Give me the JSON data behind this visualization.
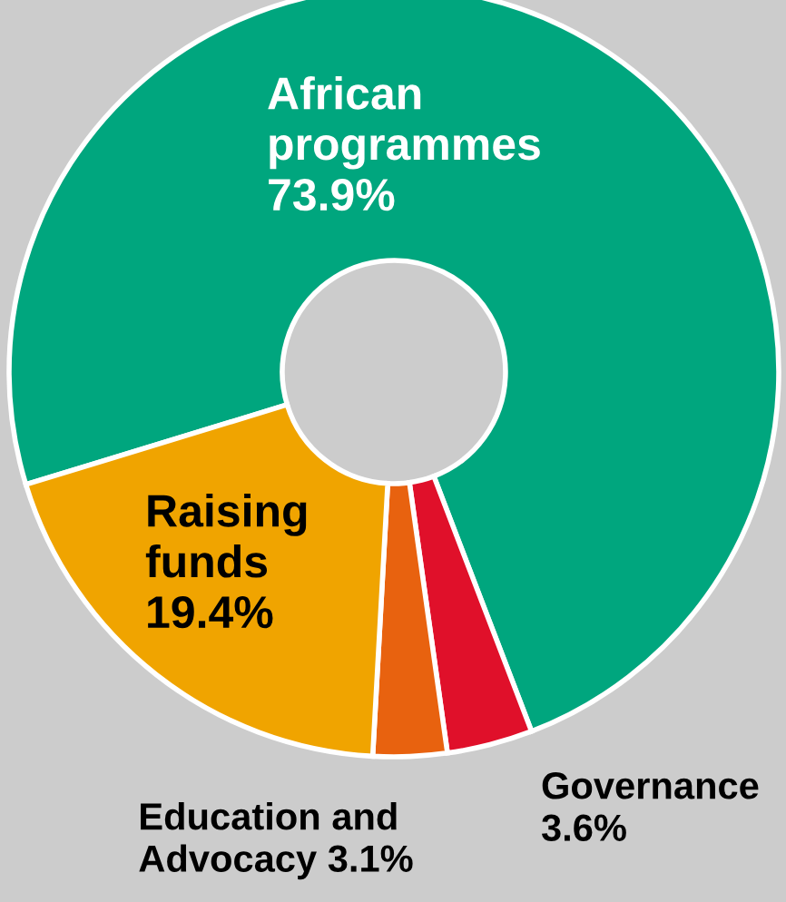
{
  "chart_data": {
    "type": "donut",
    "categories": [
      "African programmes",
      "Governance",
      "Education and Advocacy",
      "Raising funds"
    ],
    "values": [
      73.9,
      3.6,
      3.1,
      19.4
    ],
    "colors": [
      "#00a67e",
      "#e0102a",
      "#e8620f",
      "#f0a400"
    ],
    "value_labels": [
      "73.9%",
      "3.6%",
      "3.1%",
      "19.4%"
    ],
    "legend": false
  }
}
